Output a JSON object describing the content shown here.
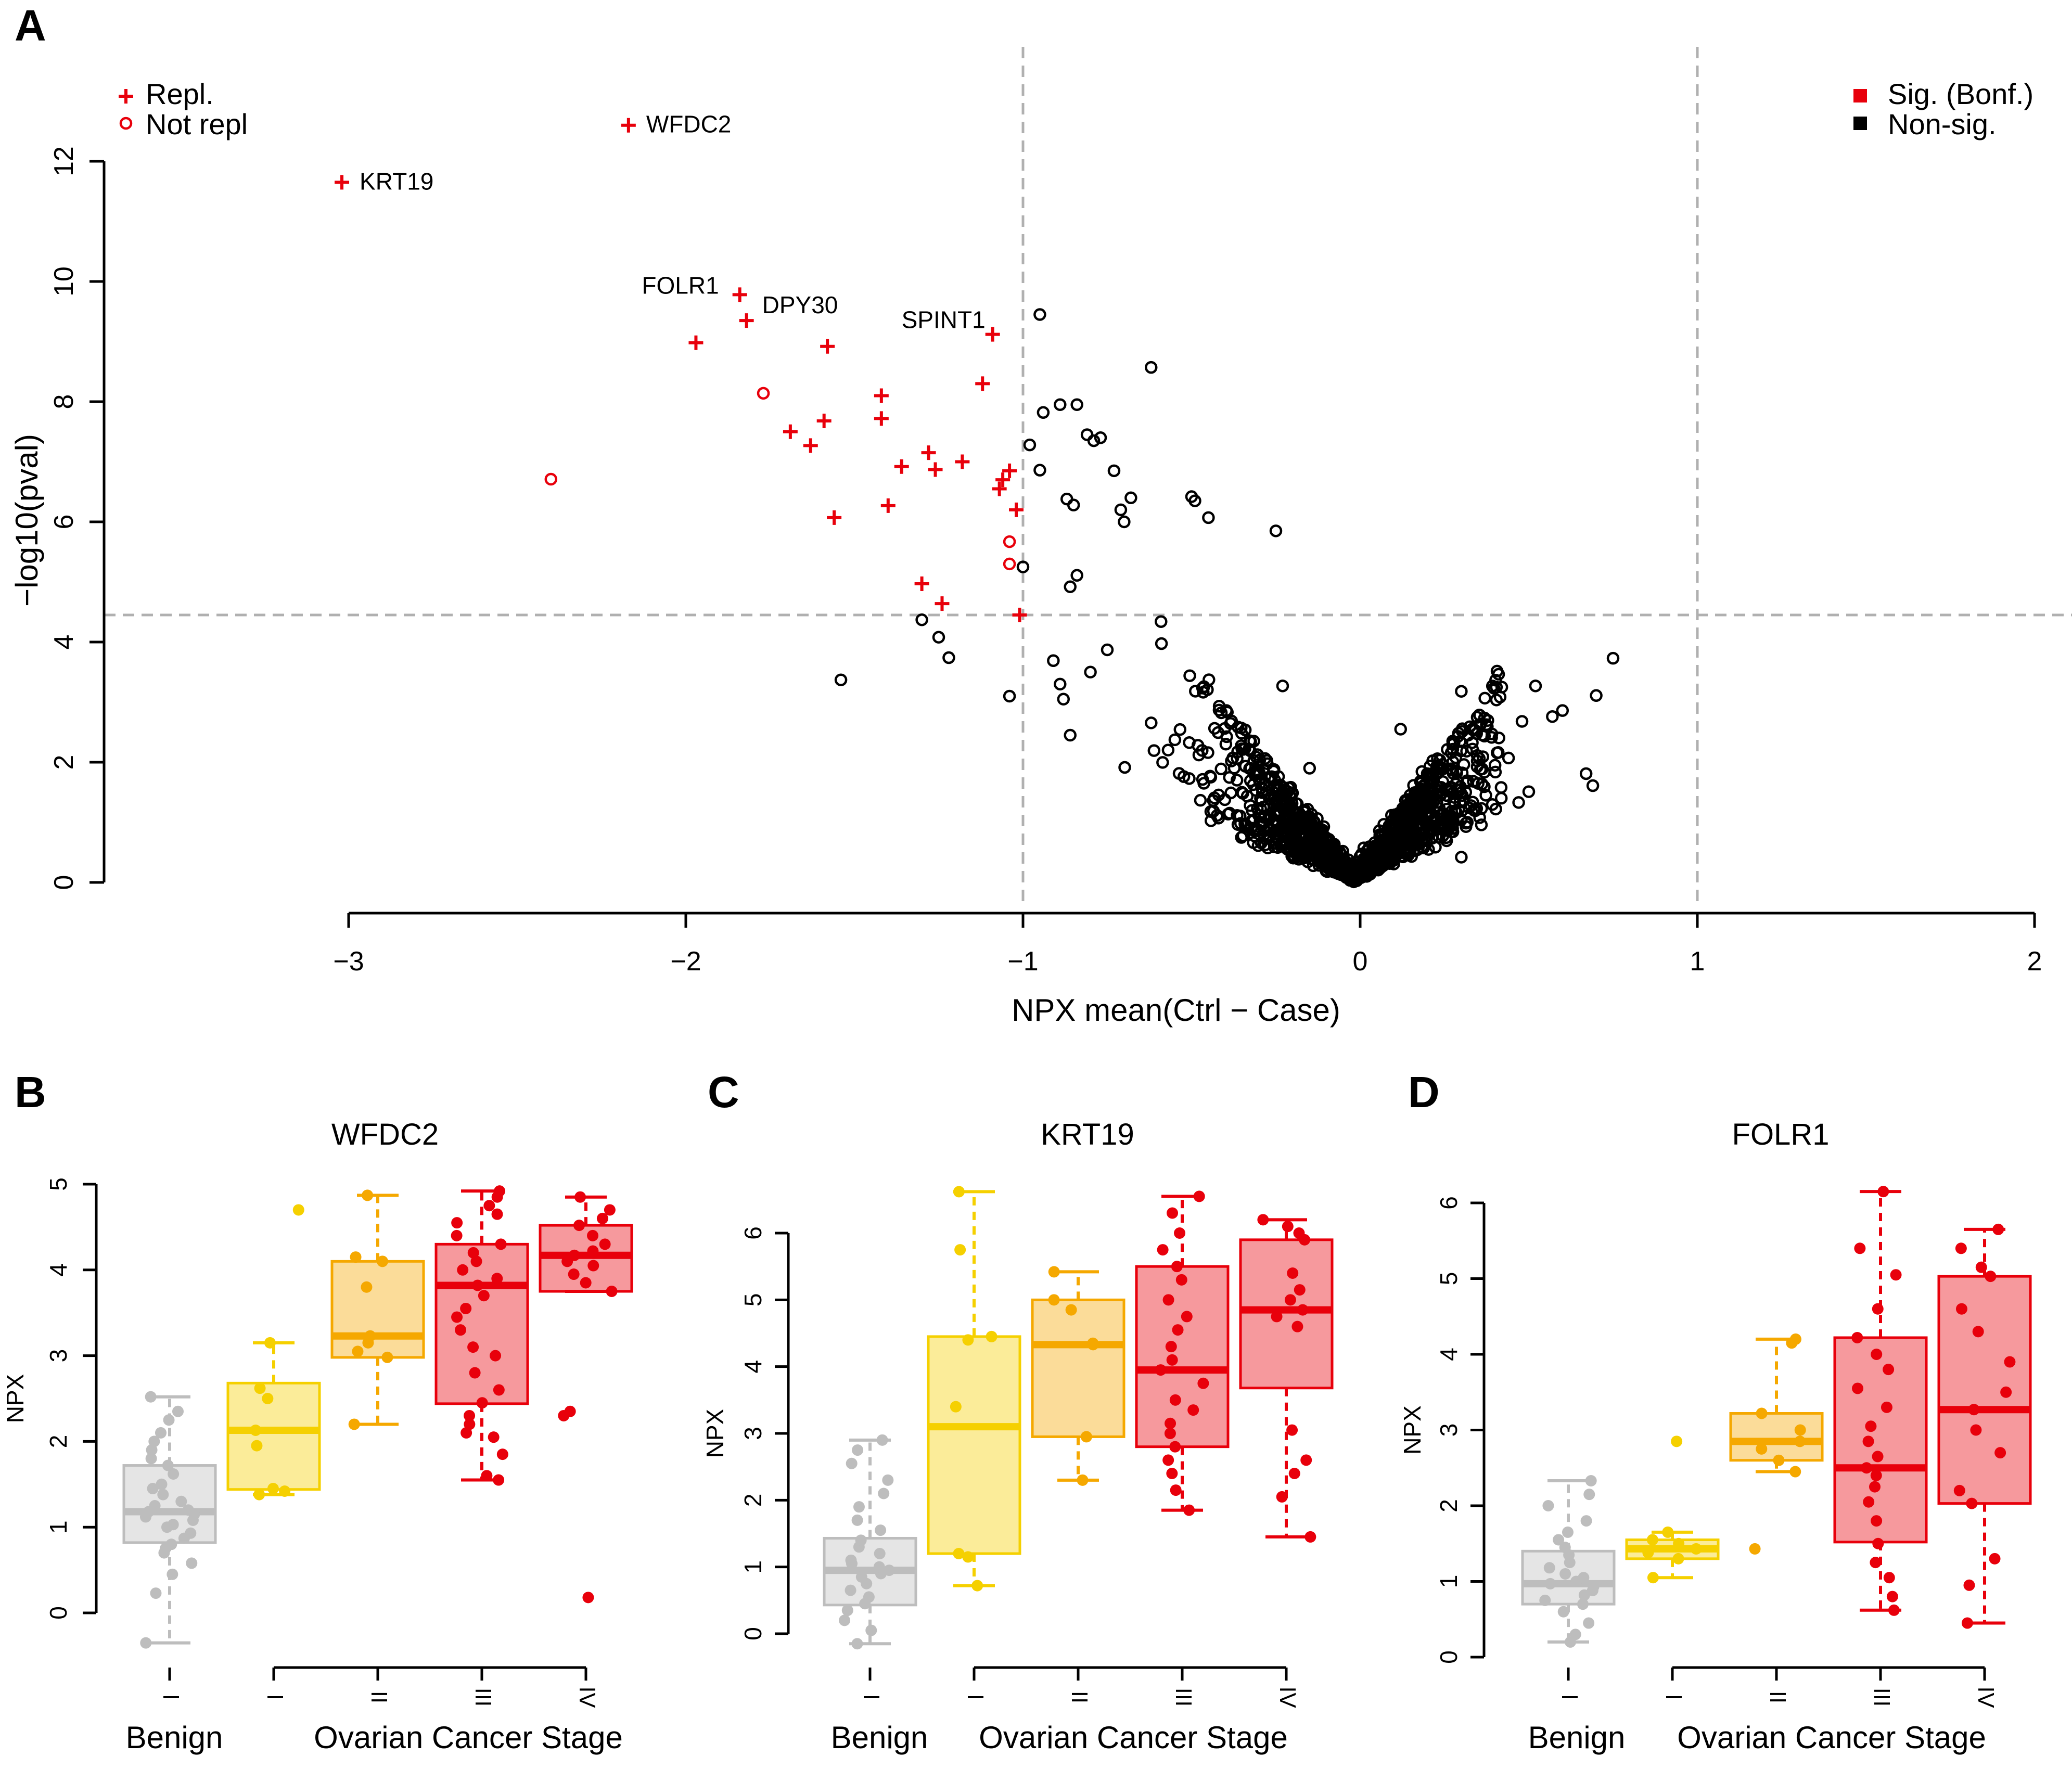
{
  "panels": {
    "a": {
      "letter": "A"
    },
    "b": {
      "letter": "B"
    },
    "c": {
      "letter": "C"
    },
    "d": {
      "letter": "D"
    }
  },
  "colors": {
    "sig": "#e8000b",
    "nonsig": "#000000",
    "guide": "#b0b0b0",
    "benign": "#bdbdbd",
    "stage1": "#f5d000",
    "stage2": "#f5a800",
    "stage3": "#e8000b",
    "stage4": "#e8000b"
  },
  "chart_data": [
    {
      "type": "scatter",
      "panel": "A",
      "title": "",
      "xlabel": "NPX mean(Ctrl − Case)",
      "ylabel": "−log10(pval)",
      "xlim": [
        -3,
        2
      ],
      "ylim": [
        0,
        12
      ],
      "xticks": [
        -3,
        -2,
        -1,
        0,
        1,
        2
      ],
      "xtick_labels": [
        "−3",
        "−2",
        "−1",
        "0",
        "1",
        "2"
      ],
      "yticks": [
        0,
        2,
        4,
        6,
        8,
        10,
        12
      ],
      "ytick_labels": [
        "0",
        "2",
        "4",
        "6",
        "8",
        "10",
        "12"
      ],
      "hline": 4.45,
      "vlines": [
        -1,
        1
      ],
      "legend_shape": {
        "repl": "Repl.",
        "not_repl": "Not repl"
      },
      "legend_color": {
        "sig": "Sig. (Bonf.)",
        "nonsig": "Non-sig."
      },
      "labels": [
        {
          "text": "WFDC2",
          "x": -2.17,
          "y": 12.6
        },
        {
          "text": "KRT19",
          "x": -3.02,
          "y": 11.65
        },
        {
          "text": "FOLR1",
          "x": -1.84,
          "y": 9.78
        },
        {
          "text": "DPY30",
          "x": -1.82,
          "y": 9.35
        },
        {
          "text": "SPINT1",
          "x": -1.09,
          "y": 9.12
        }
      ],
      "sig_repl": [
        [
          -3.02,
          11.65
        ],
        [
          -2.17,
          12.6
        ],
        [
          -1.84,
          9.78
        ],
        [
          -1.82,
          9.35
        ],
        [
          -1.97,
          8.98
        ],
        [
          -1.58,
          8.92
        ],
        [
          -1.09,
          9.12
        ],
        [
          -1.42,
          8.1
        ],
        [
          -1.12,
          8.3
        ],
        [
          -1.59,
          7.68
        ],
        [
          -1.42,
          7.72
        ],
        [
          -1.69,
          7.5
        ],
        [
          -1.63,
          7.27
        ],
        [
          -1.36,
          6.92
        ],
        [
          -1.28,
          7.15
        ],
        [
          -1.26,
          6.87
        ],
        [
          -1.18,
          7.0
        ],
        [
          -1.04,
          6.85
        ],
        [
          -1.06,
          6.7
        ],
        [
          -1.07,
          6.55
        ],
        [
          -1.4,
          6.27
        ],
        [
          -1.56,
          6.07
        ],
        [
          -1.02,
          6.2
        ],
        [
          -1.3,
          4.97
        ],
        [
          -1.24,
          4.64
        ],
        [
          -1.01,
          4.45
        ]
      ],
      "sig_not_repl": [
        [
          -1.77,
          8.14
        ],
        [
          -2.4,
          6.71
        ],
        [
          -1.04,
          5.67
        ],
        [
          -1.04,
          5.3
        ]
      ],
      "nonsig_featured": [
        [
          -0.95,
          9.45
        ],
        [
          -0.62,
          8.57
        ],
        [
          -0.89,
          7.95
        ],
        [
          -0.84,
          7.95
        ],
        [
          -0.94,
          7.82
        ],
        [
          -0.81,
          7.45
        ],
        [
          -0.79,
          7.35
        ],
        [
          -0.77,
          7.4
        ],
        [
          -0.98,
          7.28
        ],
        [
          -0.95,
          6.86
        ],
        [
          -0.73,
          6.85
        ],
        [
          -0.68,
          6.4
        ],
        [
          -0.87,
          6.38
        ],
        [
          -0.85,
          6.28
        ],
        [
          -0.71,
          6.2
        ],
        [
          -0.7,
          6.0
        ],
        [
          -0.5,
          6.42
        ],
        [
          -0.49,
          6.35
        ],
        [
          -0.45,
          6.07
        ],
        [
          -0.25,
          5.85
        ],
        [
          -1.0,
          5.25
        ],
        [
          -0.84,
          5.11
        ],
        [
          -0.86,
          4.92
        ],
        [
          -1.3,
          4.37
        ],
        [
          -1.25,
          4.08
        ],
        [
          -1.22,
          3.74
        ],
        [
          -1.54,
          3.37
        ],
        [
          -1.04,
          3.1
        ],
        [
          -0.91,
          3.69
        ],
        [
          -0.89,
          3.3
        ],
        [
          -0.88,
          3.05
        ],
        [
          -0.86,
          2.45
        ],
        [
          -0.8,
          3.5
        ],
        [
          -0.75,
          3.87
        ],
        [
          -0.23,
          3.27
        ],
        [
          -0.15,
          1.9
        ],
        [
          0.12,
          2.55
        ],
        [
          0.3,
          3.18
        ],
        [
          0.42,
          3.25
        ],
        [
          0.52,
          3.27
        ],
        [
          0.57,
          2.76
        ],
        [
          0.6,
          2.86
        ],
        [
          0.7,
          3.11
        ],
        [
          0.75,
          3.73
        ],
        [
          0.67,
          1.81
        ],
        [
          0.69,
          1.61
        ],
        [
          0.48,
          2.68
        ],
        [
          0.44,
          2.07
        ],
        [
          0.4,
          1.95
        ],
        [
          0.5,
          1.51
        ],
        [
          0.36,
          1.23
        ],
        [
          0.47,
          1.33
        ],
        [
          0.3,
          0.42
        ]
      ],
      "nonsig_cloud": {
        "n": 1350,
        "shape": "V",
        "x_center": -0.02,
        "left_slope": 6.1,
        "right_slope": 6.4,
        "x_range": [
          -0.72,
          0.42
        ]
      }
    },
    {
      "type": "box",
      "panel": "B",
      "title": "WFDC2",
      "ylabel": "NPX",
      "xgroup_labels": [
        "Benign",
        "Ovarian Cancer Stage"
      ],
      "ylim": [
        0,
        5
      ],
      "yticks": [
        0,
        1,
        2,
        3,
        4,
        5
      ],
      "ytick_labels": [
        "0",
        "1",
        "2",
        "3",
        "4",
        "5"
      ],
      "groups": [
        {
          "label": "I",
          "color": "benign",
          "min": -0.35,
          "q1": 0.82,
          "median": 1.18,
          "q3": 1.72,
          "max": 2.52,
          "points": [
            -0.35,
            0.23,
            0.45,
            0.58,
            0.7,
            0.75,
            0.8,
            0.87,
            0.93,
            1.0,
            1.03,
            1.08,
            1.12,
            1.15,
            1.18,
            1.2,
            1.25,
            1.3,
            1.38,
            1.45,
            1.5,
            1.62,
            1.72,
            1.8,
            1.9,
            2.0,
            2.1,
            2.25,
            2.35,
            2.52
          ]
        },
        {
          "label": "I",
          "color": "stage1",
          "min": 1.38,
          "q1": 1.44,
          "median": 2.13,
          "q3": 2.68,
          "max": 3.15,
          "points": [
            1.38,
            1.42,
            1.45,
            1.95,
            2.13,
            2.5,
            2.62,
            3.15,
            4.7
          ]
        },
        {
          "label": "II",
          "color": "stage2",
          "min": 2.2,
          "q1": 2.98,
          "median": 3.23,
          "q3": 4.1,
          "max": 4.87,
          "points": [
            2.2,
            2.98,
            3.05,
            3.15,
            3.23,
            3.8,
            4.1,
            4.15,
            4.87
          ]
        },
        {
          "label": "III",
          "color": "stage3",
          "min": 1.55,
          "q1": 2.44,
          "median": 3.82,
          "q3": 4.3,
          "max": 4.92,
          "points": [
            1.55,
            1.6,
            1.85,
            2.05,
            2.1,
            2.2,
            2.3,
            2.45,
            2.6,
            2.8,
            3.0,
            3.1,
            3.3,
            3.45,
            3.55,
            3.7,
            3.82,
            3.9,
            4.0,
            4.1,
            4.2,
            4.3,
            4.4,
            4.55,
            4.65,
            4.75,
            4.85,
            4.92
          ]
        },
        {
          "label": "IV",
          "color": "stage4",
          "min": 3.75,
          "q1": 3.75,
          "median": 4.17,
          "q3": 4.52,
          "max": 4.85,
          "points": [
            0.18,
            2.3,
            2.35,
            3.75,
            3.85,
            3.95,
            4.05,
            4.1,
            4.17,
            4.22,
            4.3,
            4.4,
            4.52,
            4.6,
            4.7,
            4.85
          ]
        }
      ]
    },
    {
      "type": "box",
      "panel": "C",
      "title": "KRT19",
      "ylabel": "NPX",
      "xgroup_labels": [
        "Benign",
        "Ovarian Cancer Stage"
      ],
      "ylim": [
        0,
        6
      ],
      "yticks": [
        0,
        1,
        2,
        3,
        4,
        5,
        6
      ],
      "ytick_labels": [
        "0",
        "1",
        "2",
        "3",
        "4",
        "5",
        "6"
      ],
      "groups": [
        {
          "label": "I",
          "color": "benign",
          "min": -0.15,
          "q1": 0.43,
          "median": 0.95,
          "q3": 1.43,
          "max": 2.9,
          "points": [
            -0.15,
            0.05,
            0.2,
            0.35,
            0.45,
            0.55,
            0.65,
            0.75,
            0.85,
            0.9,
            0.95,
            1.0,
            1.05,
            1.1,
            1.2,
            1.3,
            1.4,
            1.55,
            1.7,
            1.9,
            2.1,
            2.3,
            2.55,
            2.75,
            2.9
          ]
        },
        {
          "label": "I",
          "color": "stage1",
          "min": 0.72,
          "q1": 1.2,
          "median": 3.1,
          "q3": 4.45,
          "max": 6.62,
          "points": [
            0.72,
            1.15,
            1.2,
            3.4,
            4.4,
            4.45,
            5.75,
            6.62
          ]
        },
        {
          "label": "II",
          "color": "stage2",
          "min": 2.3,
          "q1": 2.95,
          "median": 4.33,
          "q3": 5.0,
          "max": 5.42,
          "points": [
            2.3,
            2.95,
            4.33,
            4.35,
            4.85,
            5.0,
            5.42
          ]
        },
        {
          "label": "III",
          "color": "stage3",
          "min": 1.85,
          "q1": 2.8,
          "median": 3.95,
          "q3": 5.5,
          "max": 6.55,
          "points": [
            1.85,
            2.15,
            2.4,
            2.6,
            2.8,
            3.0,
            3.15,
            3.35,
            3.5,
            3.75,
            3.95,
            4.1,
            4.3,
            4.55,
            4.75,
            5.0,
            5.3,
            5.5,
            5.75,
            6.0,
            6.3,
            6.55
          ]
        },
        {
          "label": "IV",
          "color": "stage4",
          "min": 1.45,
          "q1": 3.68,
          "median": 4.85,
          "q3": 5.9,
          "max": 6.2,
          "points": [
            1.45,
            2.05,
            2.4,
            2.6,
            3.05,
            4.6,
            4.75,
            4.85,
            5.0,
            5.15,
            5.4,
            5.9,
            6.0,
            6.1,
            6.2
          ]
        }
      ]
    },
    {
      "type": "box",
      "panel": "D",
      "title": "FOLR1",
      "ylabel": "NPX",
      "xgroup_labels": [
        "Benign",
        "Ovarian Cancer Stage"
      ],
      "ylim": [
        0,
        6
      ],
      "yticks": [
        0,
        1,
        2,
        3,
        4,
        5,
        6
      ],
      "ytick_labels": [
        "0",
        "1",
        "2",
        "3",
        "4",
        "5",
        "6"
      ],
      "groups": [
        {
          "label": "I",
          "color": "benign",
          "min": 0.2,
          "q1": 0.7,
          "median": 0.97,
          "q3": 1.4,
          "max": 2.33,
          "points": [
            0.2,
            0.3,
            0.45,
            0.6,
            0.7,
            0.75,
            0.82,
            0.88,
            0.93,
            0.97,
            1.0,
            1.05,
            1.1,
            1.18,
            1.25,
            1.35,
            1.45,
            1.55,
            1.65,
            1.8,
            2.0,
            2.15,
            2.33
          ]
        },
        {
          "label": "I",
          "color": "stage1",
          "min": 1.05,
          "q1": 1.3,
          "median": 1.43,
          "q3": 1.55,
          "max": 1.65,
          "points": [
            1.05,
            1.3,
            1.38,
            1.43,
            1.5,
            1.55,
            1.65,
            2.85
          ]
        },
        {
          "label": "II",
          "color": "stage2",
          "min": 2.45,
          "q1": 2.6,
          "median": 2.85,
          "q3": 3.22,
          "max": 4.2,
          "points": [
            1.43,
            2.45,
            2.6,
            2.75,
            2.85,
            3.0,
            3.22,
            4.15,
            4.2
          ]
        },
        {
          "label": "III",
          "color": "stage3",
          "min": 0.62,
          "q1": 1.52,
          "median": 2.5,
          "q3": 4.22,
          "max": 6.15,
          "points": [
            0.62,
            0.8,
            1.05,
            1.25,
            1.5,
            1.8,
            2.05,
            2.25,
            2.4,
            2.5,
            2.65,
            2.85,
            3.05,
            3.3,
            3.55,
            3.8,
            4.0,
            4.22,
            4.6,
            5.05,
            5.4,
            6.15
          ]
        },
        {
          "label": "IV",
          "color": "stage4",
          "min": 0.45,
          "q1": 2.03,
          "median": 3.27,
          "q3": 5.03,
          "max": 5.65,
          "points": [
            0.45,
            0.95,
            1.3,
            2.03,
            2.2,
            2.7,
            3.0,
            3.27,
            3.5,
            3.9,
            4.3,
            4.6,
            5.03,
            5.15,
            5.4,
            5.65
          ]
        }
      ]
    }
  ]
}
